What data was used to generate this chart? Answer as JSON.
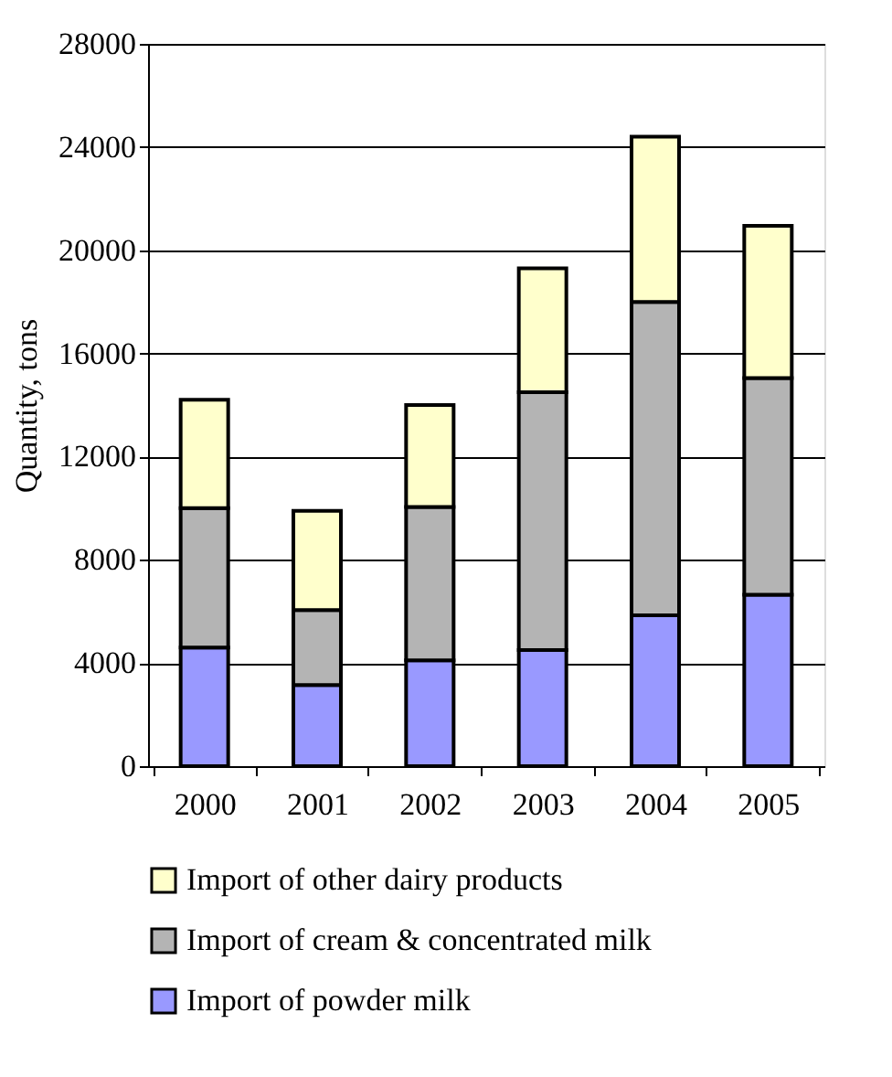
{
  "chart_data": {
    "type": "bar",
    "stacked": true,
    "ylabel": "Quantity, tons",
    "categories": [
      "2000",
      "2001",
      "2002",
      "2003",
      "2004",
      "2005"
    ],
    "series": [
      {
        "name": "Import of powder milk",
        "color": "#9999ff",
        "values": [
          4600,
          3150,
          4100,
          4500,
          5850,
          6650
        ]
      },
      {
        "name": "Import of cream & concentrated milk",
        "color": "#b4b4b4",
        "values": [
          5400,
          2900,
          5950,
          10000,
          12150,
          8400
        ]
      },
      {
        "name": "Import of other dairy products",
        "color": "#ffffcc",
        "values": [
          4200,
          3850,
          3950,
          4800,
          6400,
          5900
        ]
      }
    ],
    "ylim": [
      0,
      28000
    ],
    "yticks": [
      0,
      4000,
      8000,
      12000,
      16000,
      20000,
      24000,
      28000
    ],
    "grid": "y",
    "legend": "bottom"
  }
}
